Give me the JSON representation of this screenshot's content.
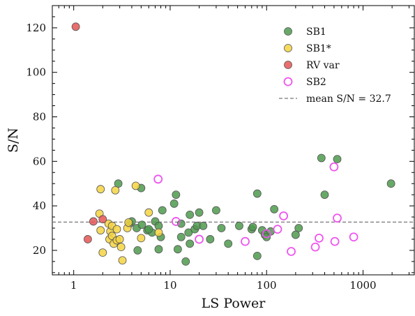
{
  "chart_data": {
    "type": "scatter",
    "xlabel": "LS Power",
    "ylabel": "S/N",
    "xscale": "log",
    "xlim": [
      0.6,
      3400
    ],
    "ylim": [
      9,
      130
    ],
    "x_ticks": [
      1,
      10,
      100,
      1000
    ],
    "x_tick_labels": [
      "1",
      "10",
      "100",
      "1000"
    ],
    "y_ticks": [
      20,
      40,
      60,
      80,
      100,
      120
    ],
    "y_tick_labels": [
      "20",
      "40",
      "60",
      "80",
      "100",
      "120"
    ],
    "grid": false,
    "legend_position": "top-right",
    "reference_line": {
      "y": 32.7,
      "label": "mean S/N = 32.7",
      "color": "#777777",
      "style": "dashed"
    },
    "series": [
      {
        "name": "SB1",
        "marker": "filled-circle",
        "color": "#4e9a4e",
        "points": [
          [
            2.9,
            50
          ],
          [
            5.0,
            48
          ],
          [
            3.8,
            32
          ],
          [
            4.0,
            33
          ],
          [
            4.5,
            30
          ],
          [
            5.1,
            31.5
          ],
          [
            5.8,
            29
          ],
          [
            6.5,
            28
          ],
          [
            7.0,
            33
          ],
          [
            7.6,
            31
          ],
          [
            8.3,
            38
          ],
          [
            4.6,
            20
          ],
          [
            7.6,
            20.5
          ],
          [
            6.0,
            29.5
          ],
          [
            8.0,
            26
          ],
          [
            11.0,
            41
          ],
          [
            11.5,
            45
          ],
          [
            12.0,
            20.5
          ],
          [
            13.0,
            32
          ],
          [
            13.0,
            26
          ],
          [
            14.5,
            15
          ],
          [
            15.5,
            28
          ],
          [
            16.0,
            23
          ],
          [
            16.0,
            36
          ],
          [
            18.0,
            29.5
          ],
          [
            19.0,
            31
          ],
          [
            20.0,
            37
          ],
          [
            22.0,
            31
          ],
          [
            26.0,
            25
          ],
          [
            30.0,
            38
          ],
          [
            34.0,
            30
          ],
          [
            40.0,
            23
          ],
          [
            52.0,
            31
          ],
          [
            70.0,
            29.5
          ],
          [
            72.0,
            30.5
          ],
          [
            80.0,
            45.5
          ],
          [
            80.0,
            17.5
          ],
          [
            90.0,
            29
          ],
          [
            96.0,
            27
          ],
          [
            100.0,
            26
          ],
          [
            110.0,
            28.5
          ],
          [
            120.0,
            38.5
          ],
          [
            200.0,
            27
          ],
          [
            215.0,
            30
          ],
          [
            370.0,
            61.5
          ],
          [
            400.0,
            45
          ],
          [
            540.0,
            61
          ],
          [
            1950.0,
            50
          ]
        ]
      },
      {
        "name": "SB1*",
        "marker": "filled-circle",
        "color": "#f5d442",
        "points": [
          [
            1.9,
            47.5
          ],
          [
            1.85,
            36.5
          ],
          [
            1.9,
            29
          ],
          [
            2.0,
            19
          ],
          [
            2.3,
            32
          ],
          [
            2.35,
            25
          ],
          [
            2.4,
            28.5
          ],
          [
            2.5,
            31
          ],
          [
            2.5,
            26.5
          ],
          [
            2.7,
            47
          ],
          [
            2.6,
            23
          ],
          [
            2.8,
            24.5
          ],
          [
            2.8,
            29.5
          ],
          [
            3.0,
            25
          ],
          [
            3.1,
            21.5
          ],
          [
            3.2,
            15.5
          ],
          [
            3.6,
            30
          ],
          [
            3.7,
            32.5
          ],
          [
            4.4,
            49
          ],
          [
            5.0,
            25.5
          ],
          [
            6.0,
            37
          ],
          [
            7.6,
            28
          ]
        ]
      },
      {
        "name": "RV var",
        "marker": "filled-circle",
        "color": "#e55555",
        "points": [
          [
            1.05,
            120.5
          ],
          [
            1.6,
            33
          ],
          [
            2.0,
            34
          ],
          [
            1.4,
            25
          ]
        ]
      },
      {
        "name": "SB2",
        "marker": "open-circle",
        "color": "#ee55ee",
        "points": [
          [
            7.5,
            52
          ],
          [
            11.5,
            33
          ],
          [
            20.0,
            25
          ],
          [
            60.0,
            24
          ],
          [
            100.0,
            27.5
          ],
          [
            130.0,
            29.5
          ],
          [
            150.0,
            35.5
          ],
          [
            180.0,
            19.5
          ],
          [
            320.0,
            21.5
          ],
          [
            350.0,
            25.5
          ],
          [
            500.0,
            57.5
          ],
          [
            510.0,
            24
          ],
          [
            540.0,
            34.5
          ],
          [
            800.0,
            26
          ]
        ]
      }
    ]
  }
}
